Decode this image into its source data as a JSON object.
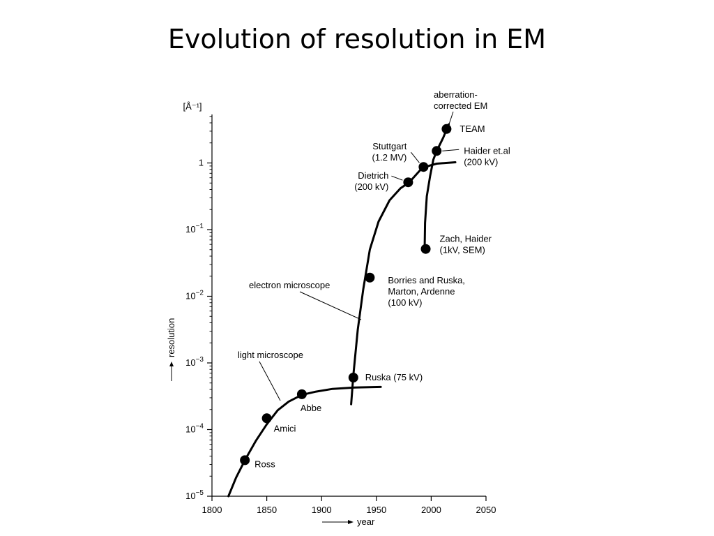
{
  "slide": {
    "title": "Evolution of resolution in EM"
  },
  "chart_data": {
    "type": "line",
    "title": "Evolution of resolution in EM",
    "xlabel": "year",
    "ylabel": "resolution",
    "yunit": "[Å⁻¹]",
    "yscale": "log",
    "xlim": [
      1800,
      2050
    ],
    "ylim_exp": [
      -5,
      0.75
    ],
    "xticks": [
      1800,
      1850,
      1900,
      1950,
      2000,
      2050
    ],
    "yticks": [
      {
        "exp": -5,
        "base": "10",
        "sup": "−5"
      },
      {
        "exp": -4,
        "base": "10",
        "sup": "−4"
      },
      {
        "exp": -3,
        "base": "10",
        "sup": "−3"
      },
      {
        "exp": -2,
        "base": "10",
        "sup": "−2"
      },
      {
        "exp": -1,
        "base": "10",
        "sup": "−1"
      },
      {
        "exp": 0,
        "base": "1",
        "sup": ""
      }
    ],
    "series": [
      {
        "name": "light microscope",
        "curve": [
          [
            1815,
            -5.0
          ],
          [
            1822,
            -4.72
          ],
          [
            1830,
            -4.46
          ],
          [
            1840,
            -4.17
          ],
          [
            1850,
            -3.92
          ],
          [
            1860,
            -3.71
          ],
          [
            1870,
            -3.58
          ],
          [
            1882,
            -3.48
          ],
          [
            1895,
            -3.43
          ],
          [
            1910,
            -3.39
          ],
          [
            1930,
            -3.37
          ],
          [
            1954,
            -3.36
          ]
        ],
        "points": [
          {
            "year": 1830,
            "log_res": -4.46,
            "label": [
              "Ross"
            ],
            "anchor": "start"
          },
          {
            "year": 1850,
            "log_res": -3.83,
            "label": [
              "Amici"
            ],
            "anchor": "start"
          },
          {
            "year": 1882,
            "log_res": -3.47,
            "label": [
              "Abbe"
            ],
            "anchor": "start"
          }
        ]
      },
      {
        "name": "electron microscope",
        "curve": [
          [
            1927,
            -3.62
          ],
          [
            1929,
            -3.18
          ],
          [
            1933,
            -2.5
          ],
          [
            1938,
            -1.9
          ],
          [
            1944,
            -1.3
          ],
          [
            1952,
            -0.88
          ],
          [
            1962,
            -0.56
          ],
          [
            1972,
            -0.38
          ],
          [
            1980,
            -0.29
          ],
          [
            1992,
            -0.07
          ],
          [
            2005,
            -0.01
          ],
          [
            2022,
            0.01
          ]
        ],
        "points": [
          {
            "year": 1929,
            "log_res": -3.22,
            "label": [
              "Ruska (75 kV)"
            ],
            "anchor": "start"
          },
          {
            "year": 1944,
            "log_res": -1.72,
            "label": [
              "Borries and Ruska,",
              "Marton, Ardenne",
              "(100 kV)"
            ],
            "anchor": "start"
          },
          {
            "year": 1979,
            "log_res": -0.29,
            "label": [
              "Dietrich",
              "(200 kV)"
            ],
            "anchor": "end"
          },
          {
            "year": 1993,
            "log_res": -0.06,
            "label": [
              "Stuttgart",
              "(1.2 MV)"
            ],
            "anchor": "end"
          }
        ]
      },
      {
        "name": "aberration-corrected EM",
        "curve": [
          [
            1994,
            -1.3
          ],
          [
            1994.4,
            -0.9
          ],
          [
            1996,
            -0.5
          ],
          [
            1999,
            -0.2
          ],
          [
            2002,
            0.05
          ],
          [
            2005,
            0.18
          ],
          [
            2011,
            0.38
          ],
          [
            2016,
            0.58
          ]
        ],
        "points": [
          {
            "year": 1995,
            "log_res": -1.29,
            "label": [
              "Zach, Haider",
              "(1kV, SEM)"
            ],
            "anchor": "start"
          },
          {
            "year": 2005,
            "log_res": 0.18,
            "label": [
              "Haider et.al",
              "(200 kV)"
            ],
            "anchor": "start"
          },
          {
            "year": 2014,
            "log_res": 0.51,
            "label": [
              "TEAM"
            ],
            "anchor": "start"
          }
        ]
      }
    ],
    "annotations": [
      {
        "text": [
          "light microscope"
        ],
        "series": "light microscope"
      },
      {
        "text": [
          "electron microscope"
        ],
        "series": "electron microscope"
      },
      {
        "text": [
          "aberration-",
          "corrected EM"
        ],
        "series": "aberration-corrected EM"
      }
    ]
  }
}
